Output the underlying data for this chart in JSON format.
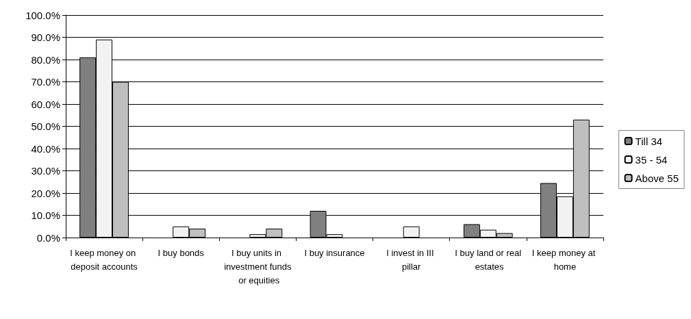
{
  "chart_data": {
    "type": "bar",
    "categories": [
      "I keep money on deposit accounts",
      "I buy bonds",
      "I buy units in investment funds or equities",
      "I buy insurance",
      "I invest in III pillar",
      "I buy land or real estates",
      "I keep money at home"
    ],
    "series": [
      {
        "name": "Till 34",
        "color": "#808080",
        "values": [
          81,
          null,
          null,
          12,
          null,
          6,
          24.5
        ]
      },
      {
        "name": "35 - 54",
        "color": "#f2f2f2",
        "values": [
          89,
          5,
          1.5,
          1.5,
          5,
          3.5,
          18.5
        ]
      },
      {
        "name": "Above 55",
        "color": "#bfbfbf",
        "values": [
          70,
          4,
          4,
          null,
          null,
          2,
          53
        ]
      }
    ],
    "ylim": [
      0,
      100
    ],
    "yticks": [
      {
        "value": 0,
        "label": "0.0%"
      },
      {
        "value": 10,
        "label": "10.0%"
      },
      {
        "value": 20,
        "label": "20.0%"
      },
      {
        "value": 30,
        "label": "30.0%"
      },
      {
        "value": 40,
        "label": "40.0%"
      },
      {
        "value": 50,
        "label": "50.0%"
      },
      {
        "value": 60,
        "label": "60.0%"
      },
      {
        "value": 70,
        "label": "70.0%"
      },
      {
        "value": 80,
        "label": "80.0%"
      },
      {
        "value": 90,
        "label": "90.0%"
      },
      {
        "value": 100,
        "label": "100.0%"
      }
    ],
    "grid": "y",
    "legend": "right"
  }
}
